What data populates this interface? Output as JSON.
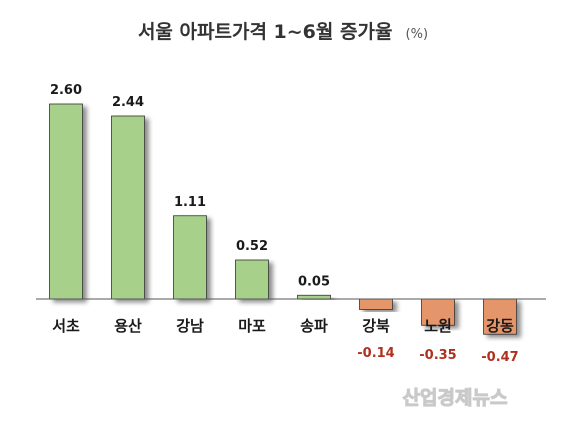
{
  "chart_data": {
    "type": "bar",
    "title": "서울 아파트가격 1~6월 증가율",
    "unit": "(%)",
    "categories": [
      "서초",
      "용산",
      "강남",
      "마포",
      "송파",
      "강북",
      "노원",
      "강동"
    ],
    "values": [
      2.6,
      2.44,
      1.11,
      0.52,
      0.05,
      -0.14,
      -0.35,
      -0.47
    ],
    "value_labels": [
      "2.60",
      "2.44",
      "1.11",
      "0.52",
      "0.05",
      "-0.14",
      "-0.35",
      "-0.47"
    ],
    "colors": {
      "positive": "#a7d18a",
      "negative": "#e5956a",
      "baseline": "#555555"
    },
    "grid": false,
    "legend": "none"
  },
  "watermark": "산업경제뉴스"
}
